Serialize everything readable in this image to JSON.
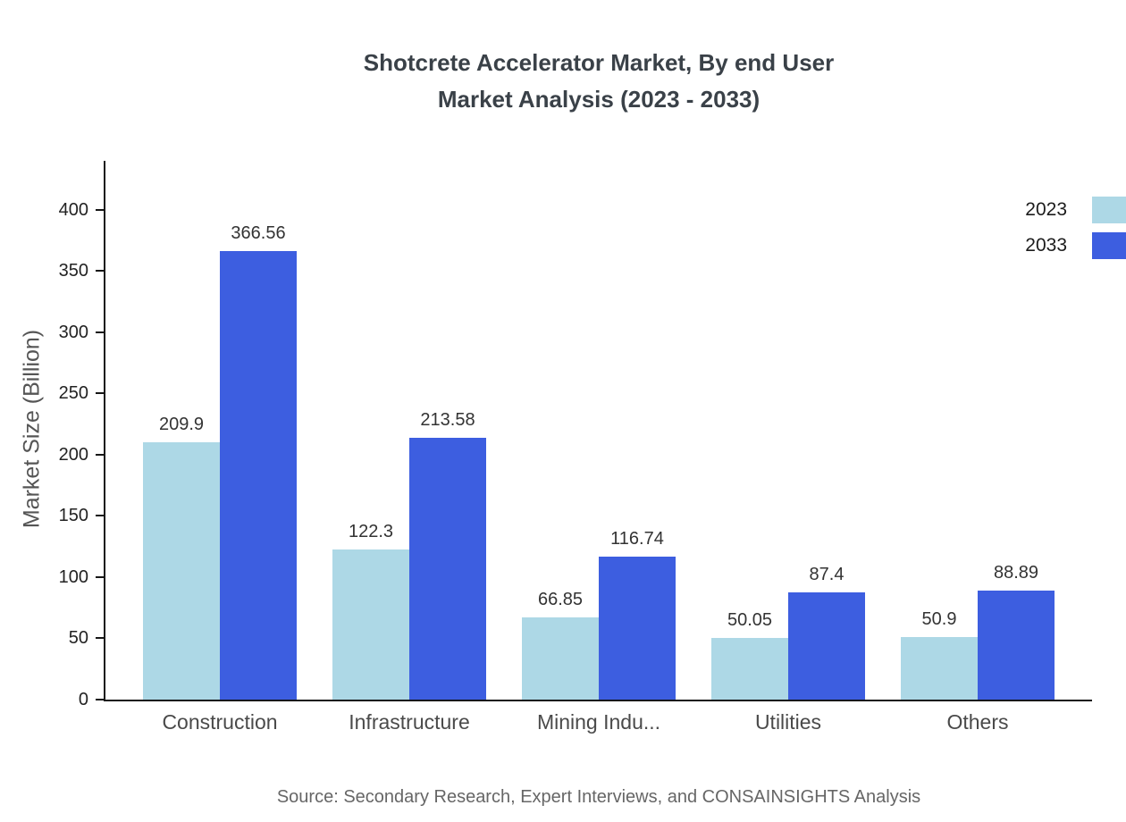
{
  "title_line1": "Shotcrete Accelerator Market, By end User",
  "title_line2": "Market Analysis (2023 - 2033)",
  "source": "Source: Secondary Research, Expert Interviews, and CONSAINSIGHTS Analysis",
  "chart_data": {
    "type": "bar",
    "title": "Shotcrete Accelerator Market, By end User Market Analysis (2023 - 2033)",
    "categories": [
      "Construction",
      "Infrastructure",
      "Mining Indu...",
      "Utilities",
      "Others"
    ],
    "series": [
      {
        "name": "2023",
        "color": "#ADD8E6",
        "values": [
          209.9,
          122.3,
          66.85,
          50.05,
          50.9
        ]
      },
      {
        "name": "2033",
        "color": "#3D5EE0",
        "values": [
          366.56,
          213.58,
          116.74,
          87.4,
          88.89
        ]
      }
    ],
    "xlabel": "",
    "ylabel": "Market Size (Billion)",
    "ylim": [
      0,
      440
    ],
    "yticks": [
      0,
      50,
      100,
      150,
      200,
      250,
      300,
      350,
      400
    ],
    "grid": false,
    "legend_position": "top-right"
  },
  "legend": {
    "items": [
      {
        "label": "2023"
      },
      {
        "label": "2033"
      }
    ]
  }
}
